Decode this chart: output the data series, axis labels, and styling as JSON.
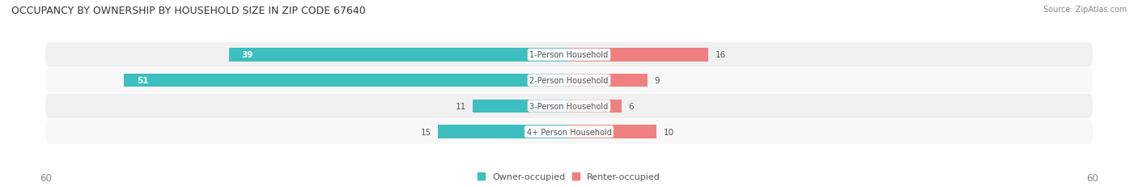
{
  "title": "OCCUPANCY BY OWNERSHIP BY HOUSEHOLD SIZE IN ZIP CODE 67640",
  "source": "Source: ZipAtlas.com",
  "categories": [
    "1-Person Household",
    "2-Person Household",
    "3-Person Household",
    "4+ Person Household"
  ],
  "owner_values": [
    39,
    51,
    11,
    15
  ],
  "renter_values": [
    16,
    9,
    6,
    10
  ],
  "owner_color": "#3DBFBF",
  "renter_color": "#F08080",
  "row_bg_colors": [
    "#F0F0F0",
    "#F8F8F8",
    "#F0F0F0",
    "#F8F8F8"
  ],
  "axis_max": 60,
  "label_fontsize": 7.5,
  "title_fontsize": 9,
  "source_fontsize": 7,
  "legend_fontsize": 8,
  "tick_fontsize": 8.5,
  "bar_height": 0.52,
  "figsize": [
    14.06,
    2.32
  ],
  "dpi": 100,
  "background_color": "#FFFFFF",
  "label_color": "#555555",
  "tick_color": "#888888"
}
